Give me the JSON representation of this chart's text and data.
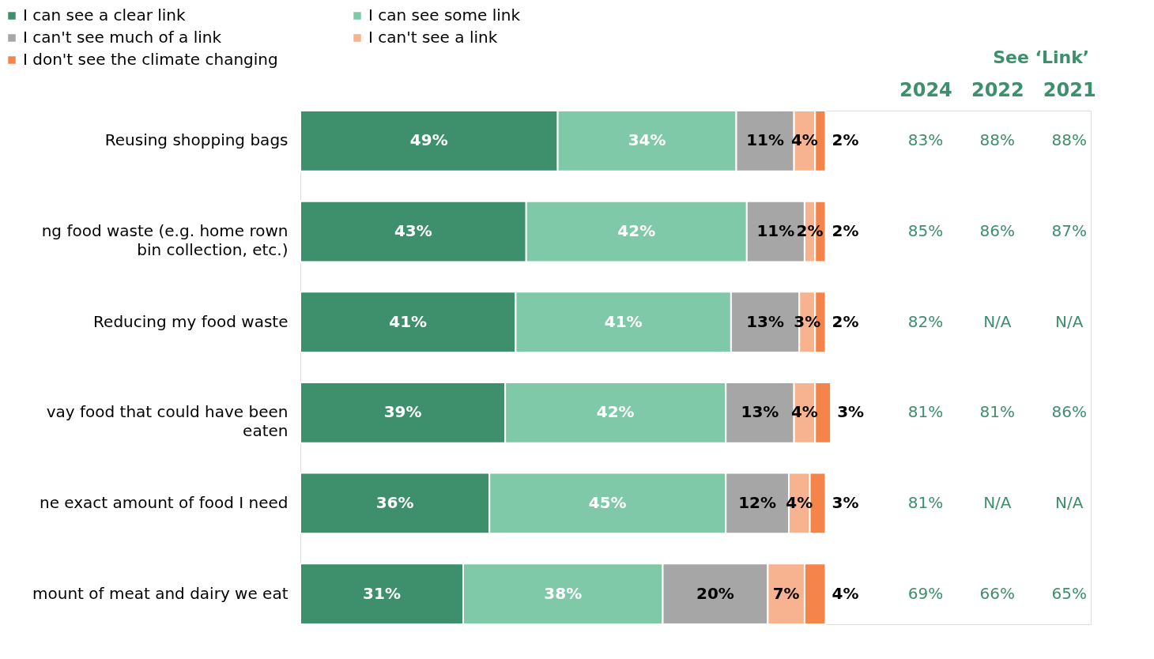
{
  "chart_data": [
    {
      "type": "bar",
      "orientation": "horizontal",
      "stacked": true,
      "legend": "top left",
      "categories": [
        "Reusing shopping bags",
        "ng food waste (e.g. home rown bin collection, etc.)",
        "Reducing my food waste",
        "vay food that could have been eaten",
        "ne exact amount of food I need",
        "mount of meat and dairy we eat"
      ],
      "series": [
        {
          "name": "I can see a clear link",
          "color": "#3e8f6b",
          "values": [
            49,
            43,
            41,
            39,
            36,
            31
          ],
          "value_labels": [
            "49%",
            "43%",
            "41%",
            "39%",
            "36%",
            "31%"
          ]
        },
        {
          "name": "I can see some link",
          "color": "#80c9a8",
          "values": [
            34,
            42,
            41,
            42,
            45,
            38
          ],
          "value_labels": [
            "34%",
            "42%",
            "41%",
            "42%",
            "45%",
            "38%"
          ]
        },
        {
          "name": "I can't see much of a link",
          "color": "#a6a6a6",
          "values": [
            11,
            11,
            13,
            13,
            12,
            20
          ],
          "value_labels": [
            "11%",
            "11%",
            "13%",
            "13%",
            "12%",
            "20%"
          ]
        },
        {
          "name": "I can't see a link",
          "color": "#f7b38f",
          "values": [
            4,
            2,
            3,
            4,
            4,
            7
          ],
          "value_labels": [
            "4%",
            "2%",
            "3%",
            "4%",
            "4%",
            "7%"
          ]
        },
        {
          "name": "I don't see the climate changing",
          "color": "#f5844a",
          "values": [
            2,
            2,
            2,
            3,
            3,
            4
          ],
          "value_labels": [
            "2%",
            "2%",
            "2%",
            "3%",
            "3%",
            "4%"
          ]
        }
      ]
    },
    {
      "type": "other",
      "title": "See ‘Link’",
      "color": "#3e8f6b",
      "categories": [
        "2024",
        "2022",
        "2021"
      ],
      "cell_labels": [
        [
          "83%",
          "88%",
          "88%"
        ],
        [
          "85%",
          "86%",
          "87%"
        ],
        [
          "82%",
          "N/A",
          "N/A"
        ],
        [
          "81%",
          "81%",
          "86%"
        ],
        [
          "81%",
          "N/A",
          "N/A"
        ],
        [
          "69%",
          "66%",
          "65%"
        ]
      ]
    }
  ]
}
